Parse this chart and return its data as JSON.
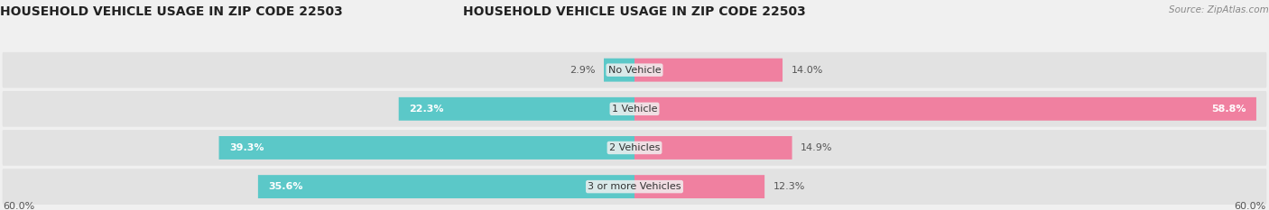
{
  "title": "HOUSEHOLD VEHICLE USAGE IN ZIP CODE 22503",
  "source": "Source: ZipAtlas.com",
  "categories": [
    "No Vehicle",
    "1 Vehicle",
    "2 Vehicles",
    "3 or more Vehicles"
  ],
  "owner_values": [
    2.9,
    22.3,
    39.3,
    35.6
  ],
  "renter_values": [
    14.0,
    58.8,
    14.9,
    12.3
  ],
  "owner_color": "#5BC8C8",
  "renter_color": "#F080A0",
  "owner_color_light": "#5BC8C8",
  "renter_color_light": "#F8B8CC",
  "axis_max": 60.0,
  "background_color": "#f0f0f0",
  "bar_bg_color": "#e2e2e2",
  "title_fontsize": 10,
  "source_fontsize": 7.5,
  "label_fontsize": 8,
  "cat_fontsize": 8,
  "bar_height": 0.6,
  "figwidth": 14.06,
  "figheight": 2.33
}
